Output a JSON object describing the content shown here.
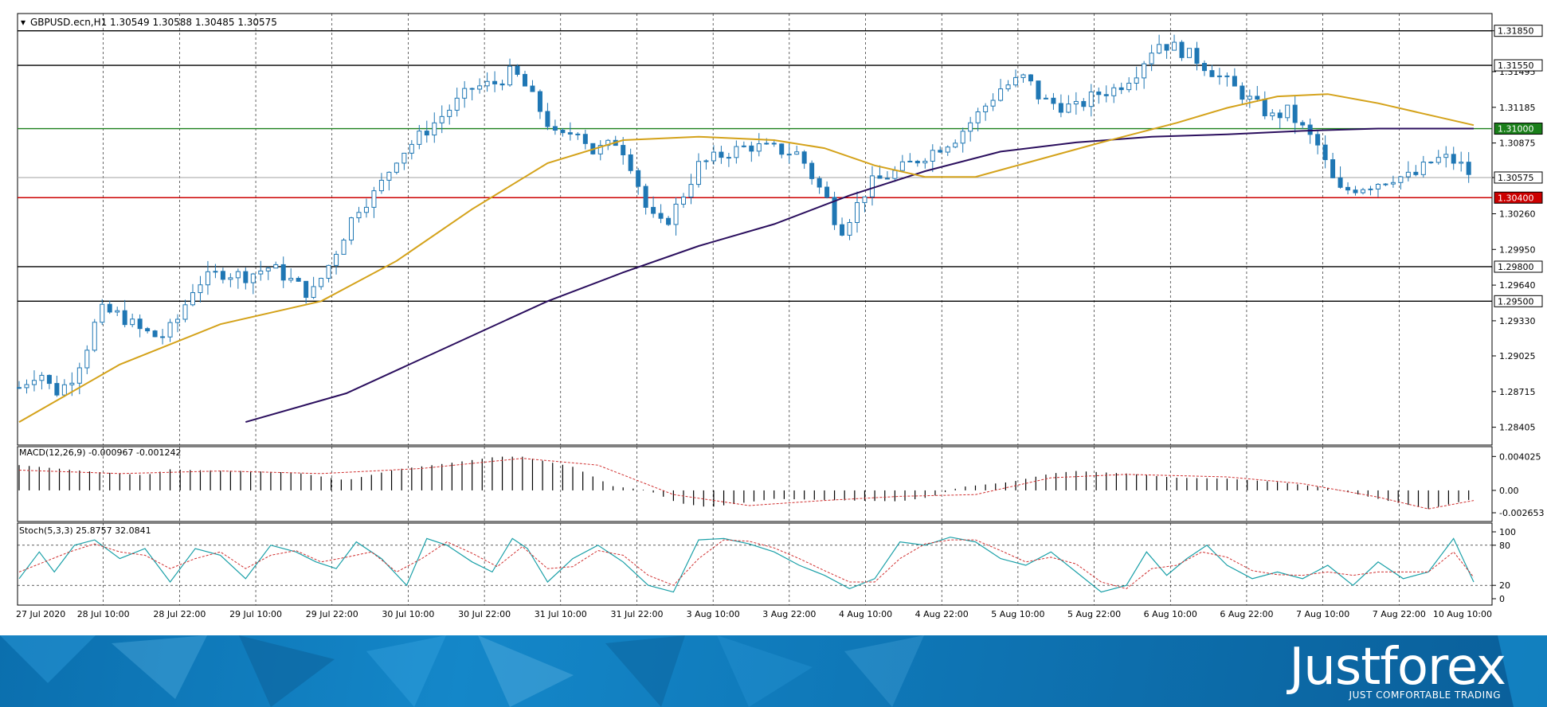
{
  "header": {
    "symbol": "GBPUSD.ecn,H1",
    "ohlc": "1.30549 1.30588 1.30485 1.30575"
  },
  "macd_label": "MACD(12,26,9) -0.000967 -0.001242",
  "stoch_label": "Stoch(5,3,3) 25.8757 32.0841",
  "brand": {
    "name": "Justforex",
    "tagline": "JUST COMFORTABLE TRADING"
  },
  "colors": {
    "candle": "#1f77b4",
    "ma_fast": "#d4a21a",
    "ma_slow": "#2b0f5e",
    "support_green": "#1a7f1a",
    "support_red": "#cc0000",
    "level_black": "#000000",
    "current_price": "#a0a0a0"
  },
  "chart_data": [
    {
      "type": "candlestick",
      "title": "GBPUSD.ecn,H1",
      "y_ticks": [
        "1.31850",
        "1.31495",
        "1.31185",
        "1.30875",
        "1.30575",
        "1.30260",
        "1.29950",
        "1.29640",
        "1.29330",
        "1.29025",
        "1.28715",
        "1.28405"
      ],
      "ylim": [
        1.2825,
        1.32
      ],
      "x_ticks": [
        "27 Jul 2020",
        "28 Jul 10:00",
        "28 Jul 22:00",
        "29 Jul 10:00",
        "29 Jul 22:00",
        "30 Jul 10:00",
        "30 Jul 22:00",
        "31 Jul 10:00",
        "31 Jul 22:00",
        "3 Aug 10:00",
        "3 Aug 22:00",
        "4 Aug 10:00",
        "4 Aug 22:00",
        "5 Aug 10:00",
        "5 Aug 22:00",
        "6 Aug 10:00",
        "6 Aug 22:00",
        "7 Aug 10:00",
        "7 Aug 22:00",
        "10 Aug 10:00"
      ],
      "levels": [
        {
          "label": "1.31850",
          "value": 1.3185,
          "color": "black"
        },
        {
          "label": "1.31550",
          "value": 1.3155,
          "color": "black"
        },
        {
          "label": "1.31000",
          "value": 1.31,
          "color": "green"
        },
        {
          "label": "1.30400",
          "value": 1.304,
          "color": "red"
        },
        {
          "label": "1.29800",
          "value": 1.298,
          "color": "black"
        },
        {
          "label": "1.29500",
          "value": 1.295,
          "color": "black"
        }
      ],
      "current_price": {
        "label": "1.30575",
        "value": 1.30575
      },
      "close_path": [
        [
          0,
          1.2875
        ],
        [
          8,
          1.289
        ],
        [
          14,
          1.287
        ],
        [
          20,
          1.288
        ],
        [
          26,
          1.2905
        ],
        [
          32,
          1.2942
        ],
        [
          40,
          1.2938
        ],
        [
          48,
          1.2925
        ],
        [
          56,
          1.2918
        ],
        [
          62,
          1.293
        ],
        [
          70,
          1.2965
        ],
        [
          80,
          1.2975
        ],
        [
          90,
          1.2972
        ],
        [
          100,
          1.298
        ],
        [
          110,
          1.2965
        ],
        [
          116,
          1.2955
        ],
        [
          124,
          1.2985
        ],
        [
          134,
          1.303
        ],
        [
          142,
          1.3045
        ],
        [
          150,
          1.3075
        ],
        [
          160,
          1.3095
        ],
        [
          170,
          1.3115
        ],
        [
          180,
          1.3135
        ],
        [
          190,
          1.314
        ],
        [
          196,
          1.315
        ],
        [
          200,
          1.314
        ],
        [
          206,
          1.312
        ],
        [
          214,
          1.309
        ],
        [
          222,
          1.31
        ],
        [
          228,
          1.308
        ],
        [
          234,
          1.3085
        ],
        [
          238,
          1.309
        ],
        [
          244,
          1.3065
        ],
        [
          250,
          1.3025
        ],
        [
          256,
          1.3015
        ],
        [
          262,
          1.3035
        ],
        [
          270,
          1.3068
        ],
        [
          280,
          1.3078
        ],
        [
          290,
          1.3085
        ],
        [
          300,
          1.3082
        ],
        [
          310,
          1.3078
        ],
        [
          316,
          1.3055
        ],
        [
          322,
          1.3035
        ],
        [
          326,
          1.301
        ],
        [
          332,
          1.303
        ],
        [
          338,
          1.3052
        ],
        [
          348,
          1.3062
        ],
        [
          356,
          1.3072
        ],
        [
          364,
          1.3082
        ],
        [
          372,
          1.3092
        ],
        [
          380,
          1.311
        ],
        [
          390,
          1.3135
        ],
        [
          400,
          1.3145
        ],
        [
          406,
          1.3125
        ],
        [
          414,
          1.312
        ],
        [
          420,
          1.3118
        ],
        [
          428,
          1.313
        ],
        [
          436,
          1.3135
        ],
        [
          444,
          1.315
        ],
        [
          452,
          1.3175
        ],
        [
          460,
          1.317
        ],
        [
          468,
          1.316
        ],
        [
          474,
          1.315
        ],
        [
          480,
          1.314
        ],
        [
          486,
          1.313
        ],
        [
          492,
          1.312
        ],
        [
          498,
          1.311
        ],
        [
          504,
          1.3115
        ],
        [
          510,
          1.31
        ],
        [
          516,
          1.3085
        ],
        [
          520,
          1.3065
        ],
        [
          524,
          1.3045
        ],
        [
          530,
          1.3048
        ],
        [
          538,
          1.3052
        ],
        [
          546,
          1.3058
        ],
        [
          554,
          1.3058
        ],
        [
          560,
          1.307
        ],
        [
          566,
          1.3075
        ],
        [
          572,
          1.307
        ],
        [
          578,
          1.3057
        ]
      ],
      "ma_fast_path": [
        [
          0,
          1.2845
        ],
        [
          40,
          1.2895
        ],
        [
          80,
          1.293
        ],
        [
          120,
          1.295
        ],
        [
          150,
          1.2985
        ],
        [
          180,
          1.303
        ],
        [
          210,
          1.307
        ],
        [
          240,
          1.309
        ],
        [
          270,
          1.3093
        ],
        [
          300,
          1.309
        ],
        [
          320,
          1.3083
        ],
        [
          340,
          1.3068
        ],
        [
          360,
          1.3058
        ],
        [
          380,
          1.3058
        ],
        [
          400,
          1.307
        ],
        [
          430,
          1.3088
        ],
        [
          460,
          1.3105
        ],
        [
          480,
          1.3118
        ],
        [
          500,
          1.3128
        ],
        [
          520,
          1.313
        ],
        [
          540,
          1.3122
        ],
        [
          560,
          1.3112
        ],
        [
          578,
          1.3103
        ]
      ],
      "ma_slow_path": [
        [
          90,
          1.2845
        ],
        [
          130,
          1.287
        ],
        [
          170,
          1.291
        ],
        [
          210,
          1.295
        ],
        [
          240,
          1.2975
        ],
        [
          270,
          1.2998
        ],
        [
          300,
          1.3017
        ],
        [
          330,
          1.3042
        ],
        [
          360,
          1.3063
        ],
        [
          390,
          1.308
        ],
        [
          420,
          1.3088
        ],
        [
          450,
          1.3093
        ],
        [
          480,
          1.3095
        ],
        [
          510,
          1.3098
        ],
        [
          540,
          1.31
        ],
        [
          578,
          1.31
        ]
      ]
    },
    {
      "type": "bar",
      "title": "MACD(12,26,9) -0.000967 -0.001242",
      "y_ticks": [
        "0.004025",
        "0.00",
        "-0.002653"
      ],
      "ylim": [
        -0.0035,
        0.005
      ],
      "histogram_path": [
        [
          0,
          0.003
        ],
        [
          30,
          0.0022
        ],
        [
          50,
          0.0018
        ],
        [
          60,
          0.0025
        ],
        [
          70,
          0.0024
        ],
        [
          90,
          0.0023
        ],
        [
          110,
          0.0021
        ],
        [
          130,
          0.0012
        ],
        [
          150,
          0.0025
        ],
        [
          170,
          0.0032
        ],
        [
          190,
          0.004
        ],
        [
          200,
          0.004
        ],
        [
          220,
          0.0028
        ],
        [
          236,
          0.0005
        ],
        [
          250,
          0.0
        ],
        [
          262,
          -0.0015
        ],
        [
          274,
          -0.002
        ],
        [
          300,
          -0.001
        ],
        [
          330,
          -0.0012
        ],
        [
          350,
          -0.0013
        ],
        [
          362,
          -0.0008
        ],
        [
          374,
          0.0004
        ],
        [
          394,
          0.001
        ],
        [
          410,
          0.002
        ],
        [
          420,
          0.0023
        ],
        [
          440,
          0.002
        ],
        [
          460,
          0.0015
        ],
        [
          480,
          0.0014
        ],
        [
          500,
          0.001
        ],
        [
          520,
          0.0003
        ],
        [
          540,
          -0.001
        ],
        [
          560,
          -0.0022
        ],
        [
          578,
          -0.001
        ]
      ],
      "signal_path": [
        [
          0,
          0.0024
        ],
        [
          40,
          0.002
        ],
        [
          80,
          0.0023
        ],
        [
          120,
          0.002
        ],
        [
          160,
          0.0026
        ],
        [
          200,
          0.0038
        ],
        [
          230,
          0.003
        ],
        [
          260,
          -0.0005
        ],
        [
          290,
          -0.0018
        ],
        [
          320,
          -0.0012
        ],
        [
          350,
          -0.0007
        ],
        [
          380,
          -0.0005
        ],
        [
          410,
          0.0015
        ],
        [
          440,
          0.0019
        ],
        [
          480,
          0.0016
        ],
        [
          510,
          0.0008
        ],
        [
          540,
          -0.0008
        ],
        [
          560,
          -0.0022
        ],
        [
          578,
          -0.0012
        ]
      ]
    },
    {
      "type": "line",
      "title": "Stoch(5,3,3) 25.8757 32.0841",
      "y_ticks": [
        "100",
        "80",
        "20",
        "0"
      ],
      "ylim": [
        0,
        100
      ],
      "main_path": [
        [
          0,
          30
        ],
        [
          8,
          70
        ],
        [
          14,
          40
        ],
        [
          22,
          80
        ],
        [
          30,
          88
        ],
        [
          40,
          60
        ],
        [
          50,
          75
        ],
        [
          60,
          25
        ],
        [
          70,
          75
        ],
        [
          80,
          65
        ],
        [
          90,
          30
        ],
        [
          100,
          80
        ],
        [
          110,
          70
        ],
        [
          118,
          55
        ],
        [
          126,
          45
        ],
        [
          134,
          85
        ],
        [
          144,
          60
        ],
        [
          154,
          20
        ],
        [
          162,
          90
        ],
        [
          170,
          80
        ],
        [
          180,
          55
        ],
        [
          188,
          40
        ],
        [
          196,
          90
        ],
        [
          202,
          75
        ],
        [
          210,
          25
        ],
        [
          220,
          60
        ],
        [
          230,
          80
        ],
        [
          240,
          55
        ],
        [
          250,
          20
        ],
        [
          260,
          10
        ],
        [
          270,
          88
        ],
        [
          280,
          90
        ],
        [
          290,
          82
        ],
        [
          300,
          70
        ],
        [
          310,
          50
        ],
        [
          320,
          35
        ],
        [
          330,
          15
        ],
        [
          340,
          30
        ],
        [
          350,
          85
        ],
        [
          360,
          80
        ],
        [
          370,
          92
        ],
        [
          380,
          85
        ],
        [
          390,
          60
        ],
        [
          400,
          50
        ],
        [
          410,
          70
        ],
        [
          420,
          40
        ],
        [
          430,
          10
        ],
        [
          440,
          20
        ],
        [
          448,
          70
        ],
        [
          456,
          35
        ],
        [
          464,
          60
        ],
        [
          472,
          80
        ],
        [
          480,
          50
        ],
        [
          490,
          30
        ],
        [
          500,
          40
        ],
        [
          510,
          30
        ],
        [
          520,
          50
        ],
        [
          530,
          20
        ],
        [
          540,
          55
        ],
        [
          550,
          30
        ],
        [
          560,
          40
        ],
        [
          570,
          90
        ],
        [
          578,
          25
        ]
      ],
      "signal_path": [
        [
          0,
          40
        ],
        [
          10,
          55
        ],
        [
          20,
          70
        ],
        [
          30,
          82
        ],
        [
          40,
          70
        ],
        [
          50,
          65
        ],
        [
          60,
          45
        ],
        [
          70,
          60
        ],
        [
          80,
          70
        ],
        [
          90,
          45
        ],
        [
          100,
          65
        ],
        [
          110,
          72
        ],
        [
          120,
          55
        ],
        [
          130,
          62
        ],
        [
          140,
          70
        ],
        [
          150,
          40
        ],
        [
          160,
          60
        ],
        [
          170,
          85
        ],
        [
          180,
          68
        ],
        [
          190,
          48
        ],
        [
          200,
          78
        ],
        [
          210,
          45
        ],
        [
          220,
          48
        ],
        [
          230,
          72
        ],
        [
          240,
          65
        ],
        [
          250,
          35
        ],
        [
          260,
          20
        ],
        [
          270,
          60
        ],
        [
          280,
          88
        ],
        [
          290,
          86
        ],
        [
          300,
          76
        ],
        [
          310,
          60
        ],
        [
          320,
          42
        ],
        [
          330,
          25
        ],
        [
          340,
          25
        ],
        [
          350,
          60
        ],
        [
          360,
          82
        ],
        [
          370,
          88
        ],
        [
          380,
          88
        ],
        [
          390,
          72
        ],
        [
          400,
          55
        ],
        [
          410,
          62
        ],
        [
          420,
          52
        ],
        [
          430,
          25
        ],
        [
          440,
          15
        ],
        [
          450,
          45
        ],
        [
          460,
          50
        ],
        [
          470,
          70
        ],
        [
          480,
          62
        ],
        [
          490,
          42
        ],
        [
          500,
          36
        ],
        [
          510,
          35
        ],
        [
          520,
          40
        ],
        [
          530,
          35
        ],
        [
          540,
          40
        ],
        [
          550,
          40
        ],
        [
          560,
          40
        ],
        [
          570,
          70
        ],
        [
          578,
          32
        ]
      ],
      "levels": [
        80,
        20
      ]
    }
  ]
}
